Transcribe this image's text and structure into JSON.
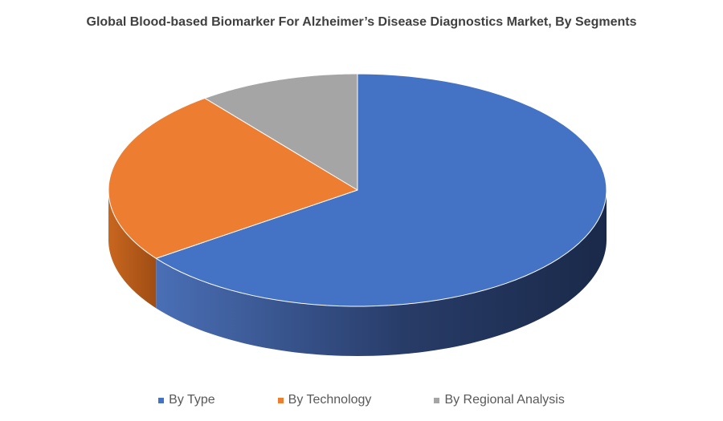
{
  "chart_data": {
    "type": "pie",
    "title": "Global Blood-based Biomarker For Alzheimer’s Disease Diagnostics Market, By Segments",
    "categories": [
      "By Type",
      "By Technology",
      "By Regional Analysis"
    ],
    "values": [
      65,
      24.5,
      10.5
    ],
    "colors": [
      "#4472C4",
      "#ED7D31",
      "#A5A5A5"
    ],
    "legend": "bottom",
    "style": "3d-pie"
  }
}
